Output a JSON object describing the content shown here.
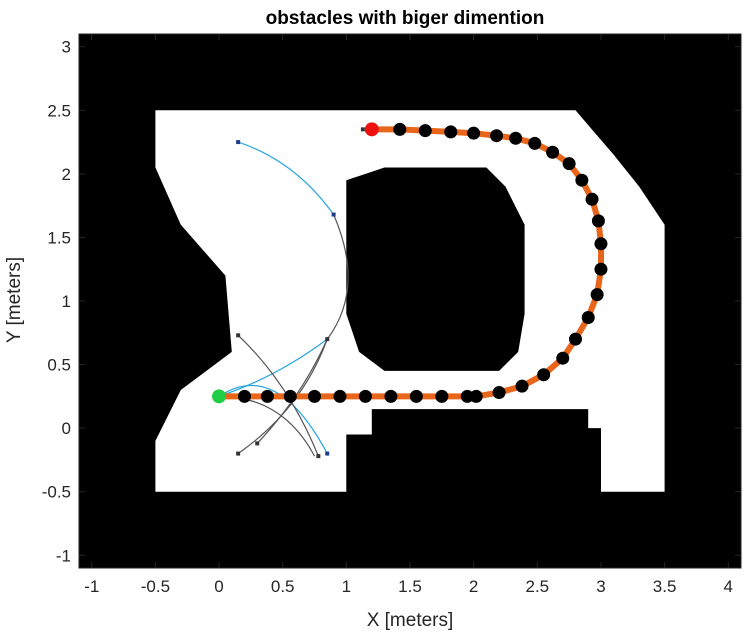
{
  "chart_data": {
    "type": "scatter",
    "title": "obstacles with biger dimention",
    "xlabel": "X [meters]",
    "ylabel": "Y [meters]",
    "xlim": [
      -1.1,
      4.1
    ],
    "ylim": [
      -1.1,
      3.1
    ],
    "xticks": [
      "-1",
      "-0.5",
      "0",
      "0.5",
      "1",
      "1.5",
      "2",
      "2.5",
      "3",
      "3.5",
      "4"
    ],
    "yticks": [
      "-1",
      "-0.5",
      "0",
      "0.5",
      "1",
      "1.5",
      "2",
      "2.5",
      "3"
    ],
    "grid": false,
    "legend": "none",
    "map": {
      "occupied_color": "#000000",
      "free_color": "#ffffff",
      "free_region_outer": [
        [
          -0.5,
          -0.5
        ],
        [
          1.0,
          -0.5
        ],
        [
          1.0,
          -0.05
        ],
        [
          1.2,
          -0.05
        ],
        [
          1.2,
          0.15
        ],
        [
          2.9,
          0.15
        ],
        [
          2.9,
          0.0
        ],
        [
          3.0,
          0.0
        ],
        [
          3.0,
          -0.5
        ],
        [
          3.5,
          -0.5
        ],
        [
          3.5,
          1.6
        ],
        [
          3.3,
          1.9
        ],
        [
          3.1,
          2.15
        ],
        [
          2.8,
          2.5
        ],
        [
          -0.5,
          2.5
        ],
        [
          -0.5,
          2.05
        ],
        [
          -0.3,
          1.6
        ],
        [
          0.05,
          1.2
        ],
        [
          0.1,
          0.6
        ],
        [
          -0.3,
          0.3
        ],
        [
          -0.5,
          -0.1
        ]
      ],
      "center_obstacle": [
        [
          1.3,
          2.05
        ],
        [
          1.0,
          1.95
        ],
        [
          1.0,
          0.9
        ],
        [
          1.1,
          0.6
        ],
        [
          1.3,
          0.45
        ],
        [
          2.2,
          0.45
        ],
        [
          2.35,
          0.6
        ],
        [
          2.4,
          0.9
        ],
        [
          2.4,
          1.6
        ],
        [
          2.25,
          1.9
        ],
        [
          2.1,
          2.05
        ]
      ]
    },
    "series": [
      {
        "color": "#e8661a",
        "marker_color": "#000000",
        "x": [
          0.0,
          0.2,
          0.38,
          0.56,
          0.75,
          0.95,
          1.15,
          1.35,
          1.55,
          1.75,
          1.95,
          2.02,
          2.2,
          2.38,
          2.55,
          2.7,
          2.8,
          2.9,
          2.97,
          3.0,
          3.0,
          2.98,
          2.93,
          2.85,
          2.75,
          2.62,
          2.48,
          2.33,
          2.18,
          2.0,
          1.82,
          1.62,
          1.42,
          1.2
        ],
        "y": [
          0.25,
          0.25,
          0.25,
          0.25,
          0.25,
          0.25,
          0.25,
          0.25,
          0.25,
          0.25,
          0.25,
          0.25,
          0.28,
          0.33,
          0.42,
          0.55,
          0.7,
          0.87,
          1.05,
          1.25,
          1.45,
          1.63,
          1.8,
          1.95,
          2.08,
          2.17,
          2.24,
          2.28,
          2.3,
          2.32,
          2.33,
          2.34,
          2.35,
          2.35
        ]
      }
    ],
    "start_point": {
      "x": 0.0,
      "y": 0.25,
      "color": "#22cc44"
    },
    "goal_point": {
      "x": 1.2,
      "y": 2.35,
      "color": "#ee1111"
    },
    "tree_curves": [
      {
        "color": "#29a6e0",
        "points": [
          [
            0.0,
            0.25
          ],
          [
            0.45,
            0.55
          ],
          [
            0.85,
            -0.2
          ]
        ]
      },
      {
        "color": "#29a6e0",
        "points": [
          [
            0.15,
            2.25
          ],
          [
            0.6,
            2.1
          ],
          [
            0.9,
            1.68
          ]
        ]
      },
      {
        "color": "#29a6e0",
        "points": [
          [
            0.0,
            0.25
          ],
          [
            0.45,
            0.4
          ],
          [
            0.85,
            0.7
          ]
        ]
      },
      {
        "color": "#555555",
        "points": [
          [
            0.9,
            1.68
          ],
          [
            1.15,
            1.1
          ],
          [
            0.85,
            0.7
          ]
        ]
      },
      {
        "color": "#555555",
        "points": [
          [
            0.15,
            0.73
          ],
          [
            0.55,
            0.35
          ],
          [
            0.78,
            -0.22
          ]
        ]
      },
      {
        "color": "#555555",
        "points": [
          [
            0.15,
            -0.2
          ],
          [
            0.65,
            0.15
          ],
          [
            0.85,
            0.7
          ]
        ]
      },
      {
        "color": "#555555",
        "points": [
          [
            0.3,
            -0.12
          ],
          [
            0.65,
            0.25
          ],
          [
            0.85,
            0.7
          ]
        ]
      },
      {
        "color": "#555555",
        "points": [
          [
            0.0,
            0.25
          ],
          [
            0.5,
            0.25
          ],
          [
            0.75,
            -0.22
          ]
        ]
      }
    ],
    "tree_nodes": [
      {
        "x": 0.15,
        "y": 2.25,
        "color": "#1f3a8a"
      },
      {
        "x": 0.9,
        "y": 1.68,
        "color": "#1f3a8a"
      },
      {
        "x": 0.85,
        "y": -0.2,
        "color": "#1f3a8a"
      },
      {
        "x": 0.15,
        "y": 0.73,
        "color": "#333333"
      },
      {
        "x": 0.85,
        "y": 0.7,
        "color": "#333333"
      },
      {
        "x": 0.15,
        "y": -0.2,
        "color": "#333333"
      },
      {
        "x": 0.3,
        "y": -0.12,
        "color": "#333333"
      },
      {
        "x": 0.78,
        "y": -0.22,
        "color": "#333333"
      },
      {
        "x": 1.13,
        "y": 2.35,
        "color": "#333333"
      }
    ]
  }
}
